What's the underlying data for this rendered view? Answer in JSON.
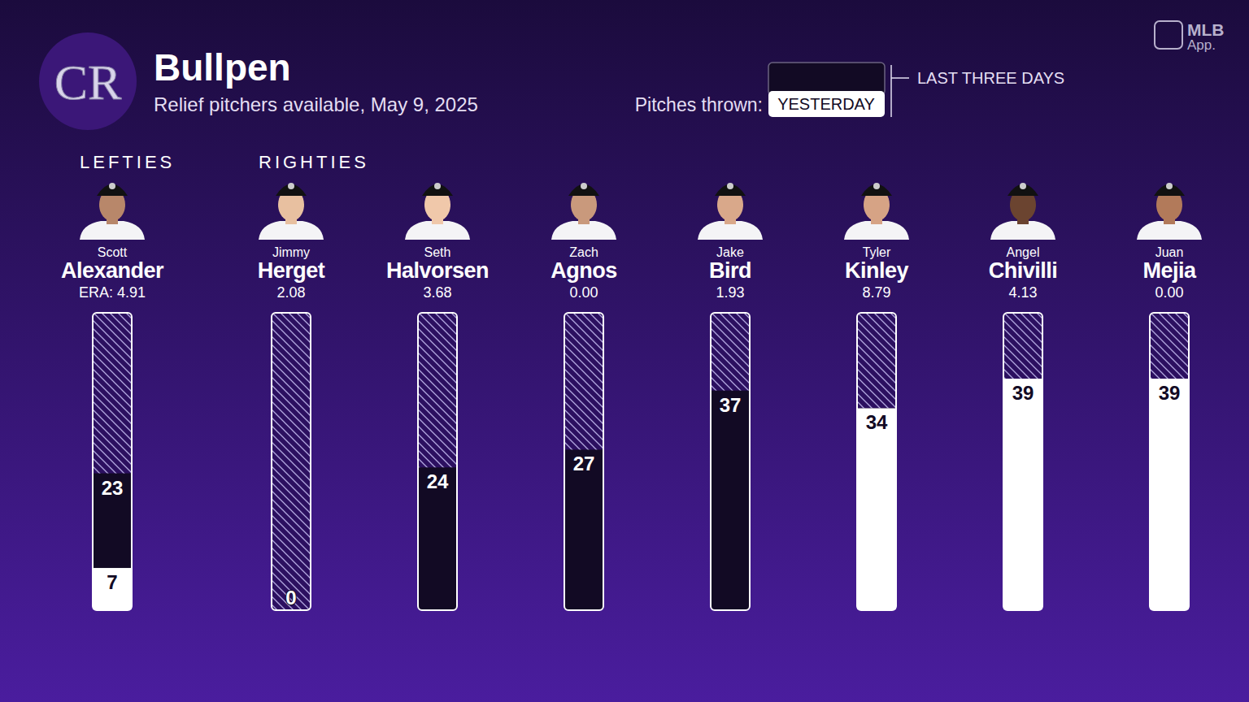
{
  "chart_data": {
    "type": "bar",
    "title": "Bullpen",
    "subtitle": "Relief pitchers available, May 9, 2025",
    "logo": "CR",
    "brand": "MLB",
    "brand_sub": "App.",
    "legend_title": "Pitches thrown:",
    "categories": [
      "Alexander",
      "Herget",
      "Halvorsen",
      "Agnos",
      "Bird",
      "Kinley",
      "Chivilli",
      "Mejia"
    ],
    "first_names": [
      "Scott",
      "Jimmy",
      "Seth",
      "Zach",
      "Jake",
      "Tyler",
      "Angel",
      "Juan"
    ],
    "group_labels": [
      "LEFTIES",
      "RIGHTIES",
      null,
      null,
      null,
      null,
      null,
      null
    ],
    "era_labels": [
      "ERA: 4.91",
      "2.08",
      "3.68",
      "0.00",
      "1.93",
      "8.79",
      "4.13",
      "0.00"
    ],
    "series": [
      {
        "name": "LAST THREE DAYS",
        "color": "#120a24",
        "values": [
          23,
          0,
          24,
          27,
          37,
          34,
          39,
          39
        ]
      },
      {
        "name": "YESTERDAY",
        "color": "#ffffff",
        "values": [
          7,
          0,
          0,
          0,
          0,
          34,
          39,
          39
        ]
      }
    ],
    "ylim": [
      0,
      50
    ],
    "stacked": false,
    "tick_labels": false,
    "data_labels": true,
    "legend": "top-right"
  }
}
